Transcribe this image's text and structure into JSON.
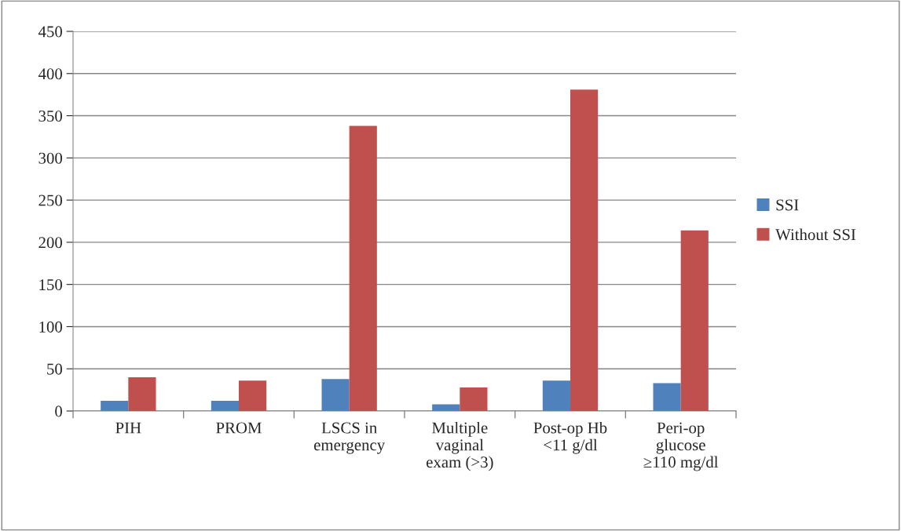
{
  "chart_data": {
    "type": "bar",
    "categories": [
      "PIH",
      "PROM",
      "LSCS in\nemergency",
      "Multiple\nvaginal\nexam (>3)",
      "Post-op Hb\n<11 g/dl",
      "Peri-op\nglucose\n≥110 mg/dl"
    ],
    "series": [
      {
        "name": "SSI",
        "color": "#4f81bd",
        "values": [
          12,
          12,
          38,
          8,
          36,
          33
        ]
      },
      {
        "name": "Without SSI",
        "color": "#c0504d",
        "values": [
          40,
          36,
          338,
          28,
          381,
          214
        ]
      }
    ],
    "ylim": [
      0,
      450
    ],
    "yticks": [
      0,
      50,
      100,
      150,
      200,
      250,
      300,
      350,
      400,
      450
    ],
    "grid": "y",
    "legend": "right"
  }
}
